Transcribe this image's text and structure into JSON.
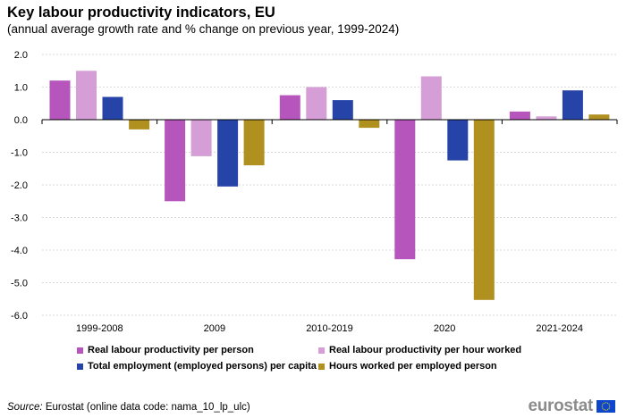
{
  "title": "Key labour productivity indicators, EU",
  "subtitle": "(annual average growth rate and % change on previous year, 1999-2024)",
  "source_label": "Source:",
  "source_text": " Eurostat (online data code: nama_10_lp_ulc)",
  "logo_text": "eurostat",
  "colors": {
    "real_per_person": "#b656bd",
    "real_per_hour": "#d59ed7",
    "employment": "#2644a7",
    "hours": "#b09120",
    "grid": "#d9d9d9",
    "axis": "#000000"
  },
  "chart_data": {
    "type": "bar",
    "title": "Key labour productivity indicators, EU",
    "subtitle": "(annual average growth rate and % change on previous year, 1999-2024)",
    "categories": [
      "1999-2008",
      "2009",
      "2010-2019",
      "2020",
      "2021-2024"
    ],
    "ylim": [
      -6.0,
      2.0
    ],
    "yticks": [
      2.0,
      1.0,
      0.0,
      -1.0,
      -2.0,
      -3.0,
      -4.0,
      -5.0,
      -6.0
    ],
    "ytick_labels": [
      "2.0",
      "1.0",
      "0.0",
      "-1.0",
      "-2.0",
      "-3.0",
      "-4.0",
      "-5.0",
      "-6.0"
    ],
    "grid": true,
    "legend_position": "bottom",
    "series": [
      {
        "name": "Real labour productivity per person",
        "color_key": "real_per_person",
        "values": [
          1.2,
          -2.5,
          0.75,
          -4.28,
          0.25
        ]
      },
      {
        "name": "Real labour productivity per hour worked",
        "color_key": "real_per_hour",
        "values": [
          1.5,
          -1.12,
          1.0,
          1.33,
          0.1
        ]
      },
      {
        "name": "Total employment (employed persons) per capita",
        "color_key": "employment",
        "values": [
          0.7,
          -2.05,
          0.6,
          -1.25,
          0.9
        ]
      },
      {
        "name": "Hours worked per employed person",
        "color_key": "hours",
        "values": [
          -0.3,
          -1.4,
          -0.25,
          -5.53,
          0.16
        ]
      }
    ]
  }
}
